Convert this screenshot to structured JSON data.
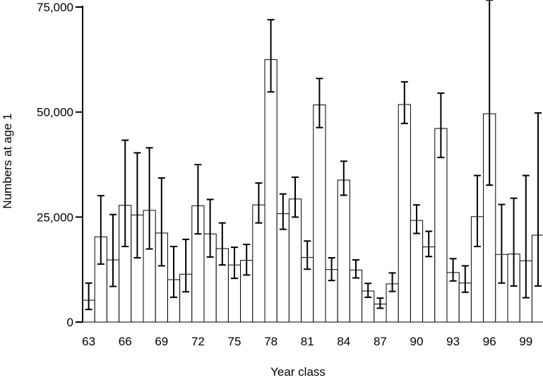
{
  "chart_data": {
    "type": "bar",
    "title": "",
    "xlabel": "Year class",
    "ylabel": "Numbers at age 1",
    "ylim": [
      0,
      75000
    ],
    "yticks": [
      0,
      25000,
      50000,
      75000
    ],
    "ytick_labels": [
      "0",
      "25,000",
      "50,000",
      "75,000"
    ],
    "xtick_labels": [
      "63",
      "66",
      "69",
      "72",
      "75",
      "78",
      "81",
      "84",
      "87",
      "90",
      "93",
      "96",
      "99"
    ],
    "xtick_years": [
      63,
      66,
      69,
      72,
      75,
      78,
      81,
      84,
      87,
      90,
      93,
      96,
      99
    ],
    "grid": false,
    "legend": "none",
    "error_bars": true,
    "categories": [
      63,
      64,
      65,
      66,
      67,
      68,
      69,
      70,
      71,
      72,
      73,
      74,
      75,
      76,
      77,
      78,
      79,
      80,
      81,
      82,
      83,
      84,
      85,
      86,
      87,
      88,
      89,
      90,
      91,
      92,
      93,
      94,
      95,
      96,
      97,
      98,
      99,
      100
    ],
    "values": [
      5200,
      20300,
      14800,
      27800,
      25500,
      26600,
      21200,
      10100,
      11400,
      27700,
      21000,
      17500,
      13600,
      14700,
      27900,
      62500,
      25800,
      29300,
      15400,
      51700,
      12500,
      33800,
      12400,
      7400,
      4300,
      9100,
      51800,
      24200,
      17900,
      46100,
      11800,
      9300,
      25100,
      49600,
      16100,
      16200,
      14600,
      20700
    ],
    "error_low": [
      3000,
      13800,
      8500,
      18000,
      15300,
      17400,
      13400,
      5900,
      7200,
      21000,
      15500,
      13600,
      10400,
      11200,
      23600,
      54800,
      22100,
      25000,
      12600,
      46300,
      9900,
      30200,
      10500,
      5900,
      3300,
      7300,
      47300,
      21100,
      15600,
      39200,
      9800,
      7100,
      18000,
      32600,
      9300,
      8600,
      5800,
      8600
    ],
    "error_high": [
      9300,
      30100,
      25600,
      43300,
      40300,
      41500,
      34300,
      18000,
      19700,
      37500,
      29200,
      23600,
      17800,
      18500,
      33100,
      72000,
      30500,
      34500,
      19300,
      58000,
      15300,
      38300,
      14800,
      9200,
      5700,
      11700,
      57200,
      27900,
      21600,
      54500,
      15100,
      13400,
      34900,
      78000,
      28000,
      29500,
      34900,
      49800
    ],
    "colors": {
      "bar_fill": "#ffffff",
      "bar_stroke": "#000000"
    }
  }
}
